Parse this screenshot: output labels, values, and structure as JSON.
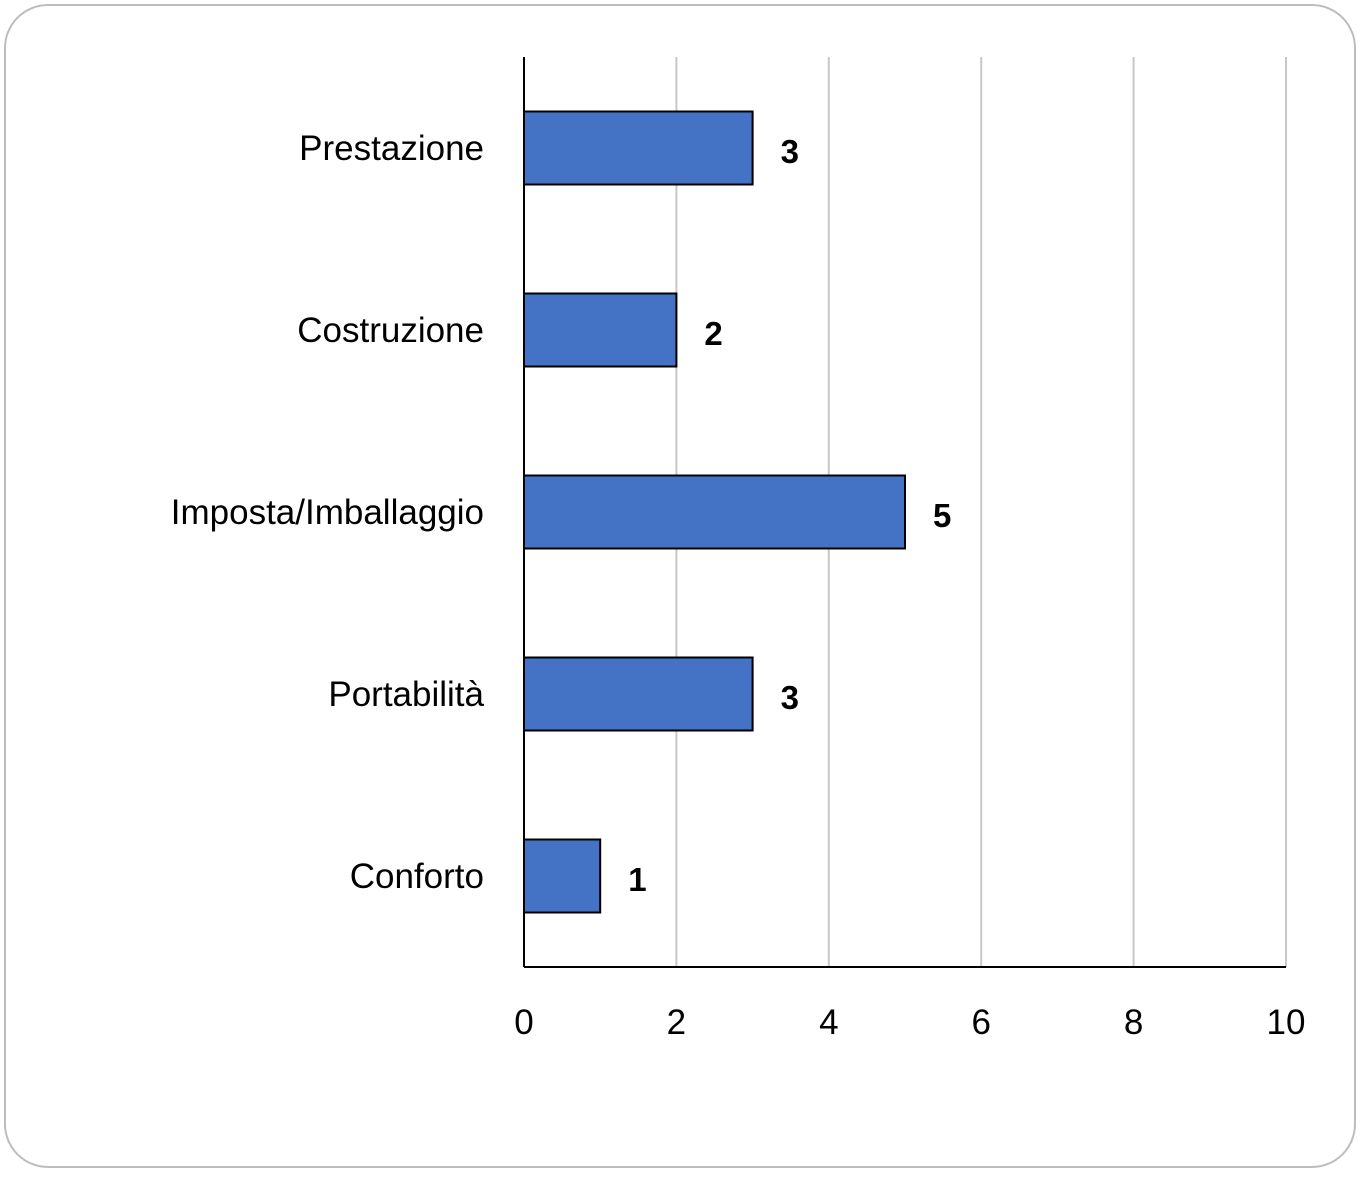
{
  "chart_data": {
    "type": "bar",
    "orientation": "horizontal",
    "categories": [
      "Prestazione",
      "Costruzione",
      "Imposta/Imballaggio",
      "Portabilità",
      "Conforto"
    ],
    "values": [
      3,
      2,
      5,
      3,
      1
    ],
    "data_labels": [
      "3",
      "2",
      "5",
      "3",
      "1"
    ],
    "xlim": [
      0,
      10
    ],
    "x_ticks": [
      0,
      2,
      4,
      6,
      8,
      10
    ],
    "x_tick_labels": [
      "0",
      "2",
      "4",
      "6",
      "8",
      "10"
    ],
    "grid": "vertical",
    "legend": "none",
    "title": "",
    "xlabel": "",
    "ylabel": "",
    "colors": {
      "bar": "#4472c4",
      "bar_border": "#000000",
      "grid": "#c8c8c8",
      "axis": "#000000"
    }
  }
}
